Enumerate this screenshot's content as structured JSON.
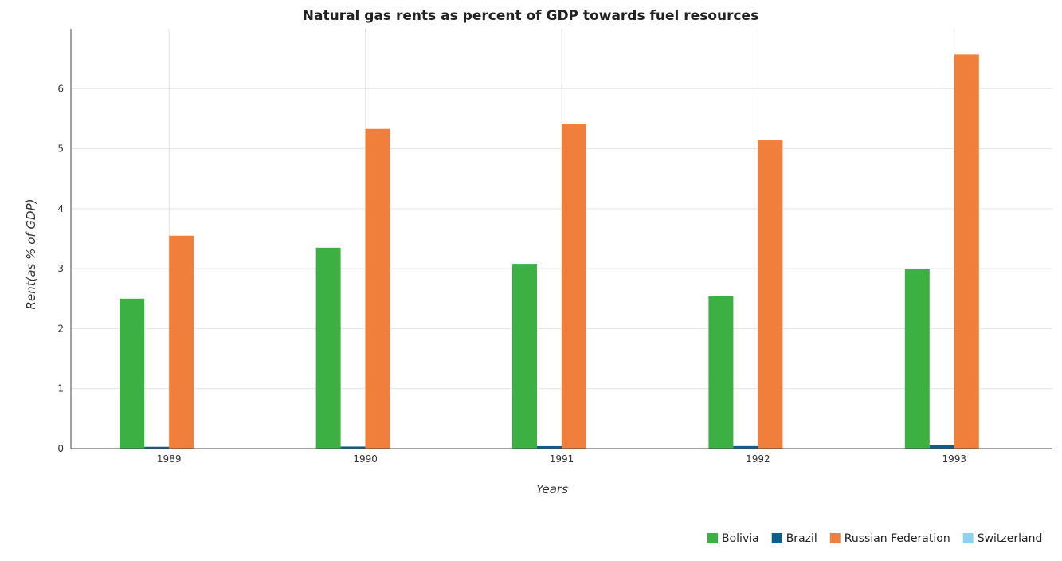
{
  "chart_data": {
    "type": "bar",
    "title": "Natural gas rents as percent of GDP towards fuel resources",
    "xlabel": "Years",
    "ylabel": "Rent(as % of GDP)",
    "categories": [
      "1989",
      "1990",
      "1991",
      "1992",
      "1993"
    ],
    "series": [
      {
        "name": "Bolivia",
        "color": "#3cb043",
        "values": [
          2.5,
          3.35,
          3.08,
          2.54,
          3.0
        ]
      },
      {
        "name": "Brazil",
        "color": "#0e5e8a",
        "values": [
          0.03,
          0.034,
          0.041,
          0.042,
          0.053
        ]
      },
      {
        "name": "Russian Federation",
        "color": "#f07f3c",
        "values": [
          3.55,
          5.33,
          5.42,
          5.14,
          6.57
        ]
      },
      {
        "name": "Switzerland",
        "color": "#8fd0f0",
        "values": [
          0.0003,
          0.0003,
          0.0002,
          0.0002,
          0.0002
        ]
      }
    ],
    "ylim": [
      0,
      7
    ],
    "yticks": [
      0,
      1,
      2,
      3,
      4,
      5,
      6
    ],
    "grid": true,
    "legend_position": "bottom-right"
  }
}
